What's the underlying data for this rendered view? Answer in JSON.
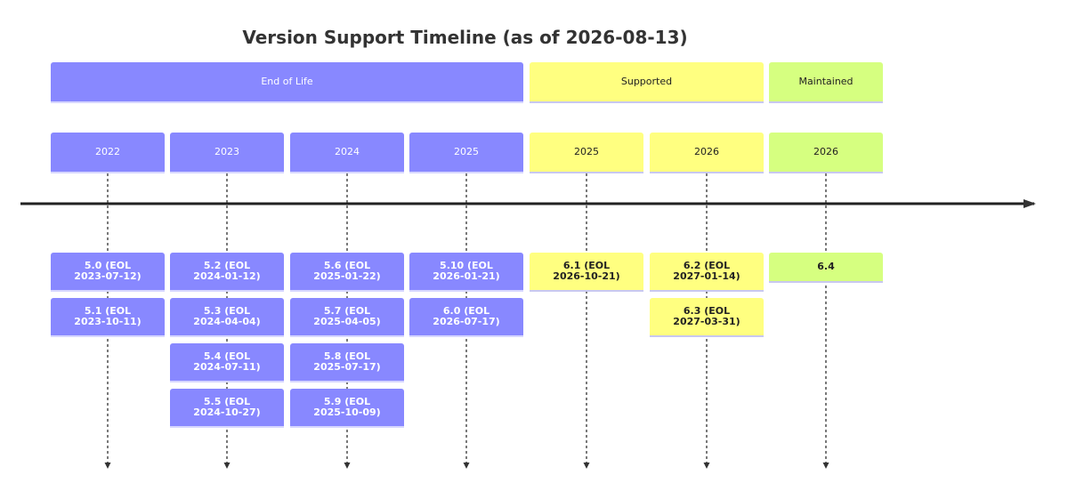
{
  "title": "Version Support Timeline (as of 2026-08-13)",
  "sections": [
    {
      "label": "End of Life",
      "status": "eol"
    },
    {
      "label": "Supported",
      "status": "sup"
    },
    {
      "label": "Maintained",
      "status": "mnt"
    }
  ],
  "periods": [
    {
      "label": "2022",
      "status": "eol",
      "events": [
        {
          "line1": "5.0 (EOL",
          "line2": "2023-07-12)"
        },
        {
          "line1": "5.1 (EOL",
          "line2": "2023-10-11)"
        }
      ]
    },
    {
      "label": "2023",
      "status": "eol",
      "events": [
        {
          "line1": "5.2 (EOL",
          "line2": "2024-01-12)"
        },
        {
          "line1": "5.3 (EOL",
          "line2": "2024-04-04)"
        },
        {
          "line1": "5.4 (EOL",
          "line2": "2024-07-11)"
        },
        {
          "line1": "5.5 (EOL",
          "line2": "2024-10-27)"
        }
      ]
    },
    {
      "label": "2024",
      "status": "eol",
      "events": [
        {
          "line1": "5.6 (EOL",
          "line2": "2025-01-22)"
        },
        {
          "line1": "5.7 (EOL",
          "line2": "2025-04-05)"
        },
        {
          "line1": "5.8 (EOL",
          "line2": "2025-07-17)"
        },
        {
          "line1": "5.9 (EOL",
          "line2": "2025-10-09)"
        }
      ]
    },
    {
      "label": "2025",
      "status": "eol",
      "events": [
        {
          "line1": "5.10 (EOL",
          "line2": "2026-01-21)"
        },
        {
          "line1": "6.0 (EOL",
          "line2": "2026-07-17)"
        }
      ]
    },
    {
      "label": "2025",
      "status": "sup",
      "events": [
        {
          "line1": "6.1 (EOL",
          "line2": "2026-10-21)"
        }
      ]
    },
    {
      "label": "2026",
      "status": "sup",
      "events": [
        {
          "line1": "6.2 (EOL",
          "line2": "2027-01-14)"
        },
        {
          "line1": "6.3 (EOL",
          "line2": "2027-03-31)"
        }
      ]
    },
    {
      "label": "2026",
      "status": "mnt",
      "events": [
        {
          "line1": "6.4",
          "line2": ""
        }
      ]
    }
  ]
}
